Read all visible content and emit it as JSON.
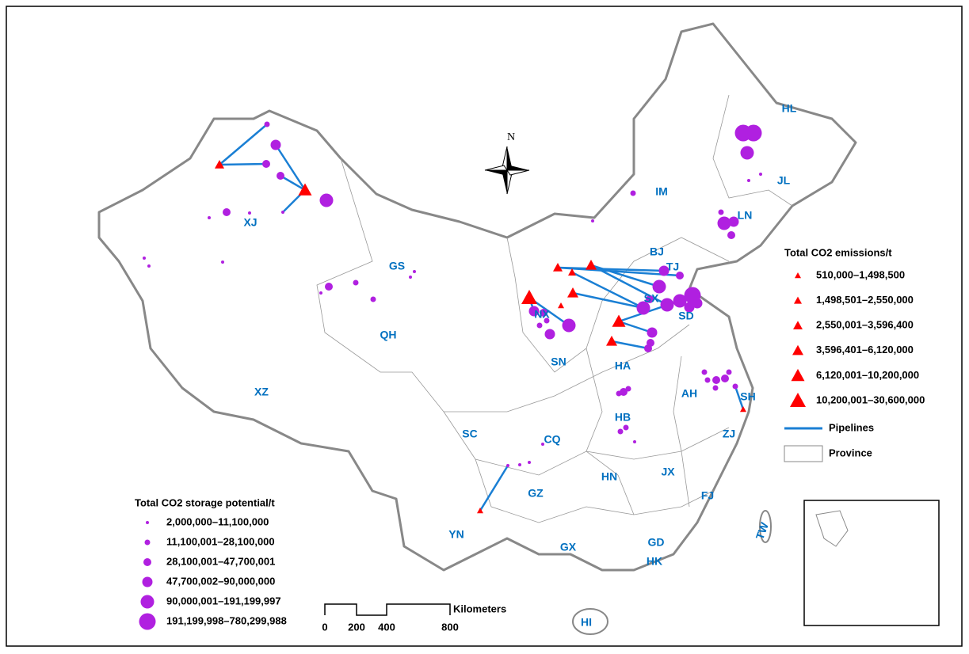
{
  "map": {
    "compass": "N",
    "provinces": [
      "HL",
      "JL",
      "LN",
      "IM",
      "BJ",
      "TJ",
      "SD",
      "SX",
      "NX",
      "GS",
      "QH",
      "XJ",
      "XZ",
      "SC",
      "CQ",
      "SN",
      "HA",
      "HB",
      "AH",
      "SH",
      "ZJ",
      "JX",
      "HN",
      "FJ",
      "GZ",
      "YN",
      "GX",
      "GD",
      "HK",
      "HI",
      "TW"
    ],
    "emissions_legend": {
      "title": "Total CO2 emissions/t",
      "items": [
        "510,000–1,498,500",
        "1,498,501–2,550,000",
        "2,550,001–3,596,400",
        "3,596,401–6,120,000",
        "6,120,001–10,200,000",
        "10,200,001–30,600,000"
      ]
    },
    "pipelines": "Pipelines",
    "province": "Province",
    "storage_legend": {
      "title": "Total CO2 storage potential/t",
      "items": [
        "2,000,000–11,100,000",
        "11,100,001–28,100,000",
        "28,100,001–47,700,001",
        "47,700,002–90,000,000",
        "90,000,001–191,199,997",
        "191,199,998–780,299,988"
      ]
    },
    "scale": {
      "unit": "Kilometers",
      "labels": [
        "0",
        "200",
        "400",
        "800"
      ]
    }
  }
}
